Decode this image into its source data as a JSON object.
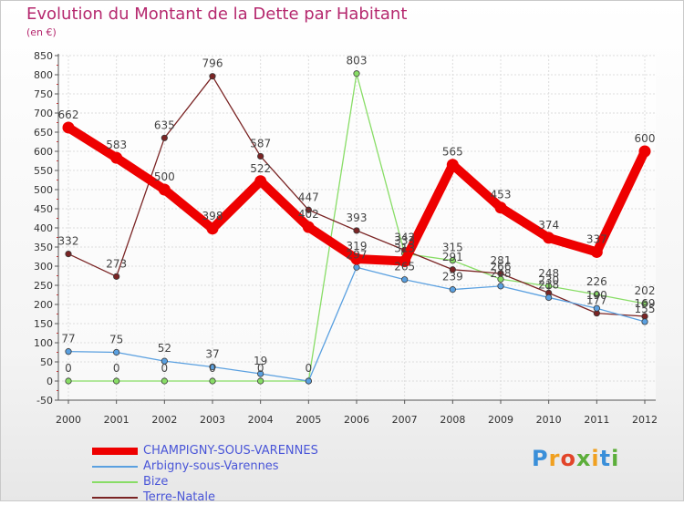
{
  "title": "Evolution du Montant de la Dette par Habitant",
  "subtitle": "(en €)",
  "logo": "Proxiti",
  "chart_data": {
    "type": "line",
    "x": [
      "2000",
      "2001",
      "2002",
      "2003",
      "2004",
      "2005",
      "2006",
      "2007",
      "2008",
      "2009",
      "2010",
      "2011",
      "2012"
    ],
    "ylim": [
      -50,
      850
    ],
    "yticks": [
      -50,
      0,
      50,
      100,
      150,
      200,
      250,
      300,
      350,
      400,
      450,
      500,
      550,
      600,
      650,
      700,
      750,
      800,
      850
    ],
    "grid": true,
    "legend_position": "bottom-left",
    "series": [
      {
        "name": "CHAMPIGNY-SOUS-VARENNES",
        "color": "#ee0000",
        "values": [
          662,
          583,
          500,
          398,
          522,
          402,
          319,
          313,
          565,
          453,
          374,
          337,
          600
        ]
      },
      {
        "name": "Arbigny-sous-Varennes",
        "color": "#5aa0e0",
        "values": [
          77,
          75,
          52,
          37,
          19,
          0,
          297,
          265,
          239,
          248,
          218,
          190,
          155
        ]
      },
      {
        "name": "Bize",
        "color": "#88dd66",
        "values": [
          0,
          0,
          0,
          0,
          0,
          0,
          803,
          333,
          315,
          266,
          248,
          226,
          202
        ]
      },
      {
        "name": "Terre-Natale",
        "color": "#7a2424",
        "values": [
          332,
          273,
          635,
          796,
          587,
          447,
          393,
          342,
          291,
          281,
          230,
          177,
          169
        ]
      }
    ],
    "point_labels": [
      [
        "662",
        "583",
        "500",
        "398",
        "522",
        "402",
        "319",
        "313",
        "565",
        "453",
        "374",
        "337",
        "600"
      ],
      [
        "77",
        "75",
        "52",
        "37",
        "19",
        "",
        "297",
        "265",
        "239",
        "248",
        "218",
        "190",
        "155"
      ],
      [
        "0",
        "0",
        "0",
        "0",
        "0",
        "0",
        "803",
        "333",
        "315",
        "266",
        "248",
        "226",
        "202"
      ],
      [
        "332",
        "273",
        "635",
        "796",
        "587",
        "447",
        "393",
        "342",
        "291",
        "281",
        "230",
        "177",
        "169"
      ]
    ]
  }
}
